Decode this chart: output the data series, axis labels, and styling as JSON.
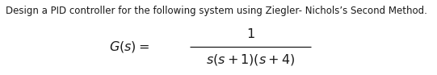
{
  "title_text": "Design a PID controller for the following system using Ziegler- Nichols’s Second Method.",
  "title_fontsize": 8.5,
  "formula_lhs": "$G(s) =$",
  "formula_numerator": "$1$",
  "formula_denominator": "$s(s+1)(s+4)$",
  "formula_fontsize": 11.5,
  "num_fontsize": 11.5,
  "den_fontsize": 11.5,
  "background_color": "#ffffff",
  "text_color": "#1a1a1a",
  "line_color": "#1a1a1a",
  "line_thickness": 0.9
}
